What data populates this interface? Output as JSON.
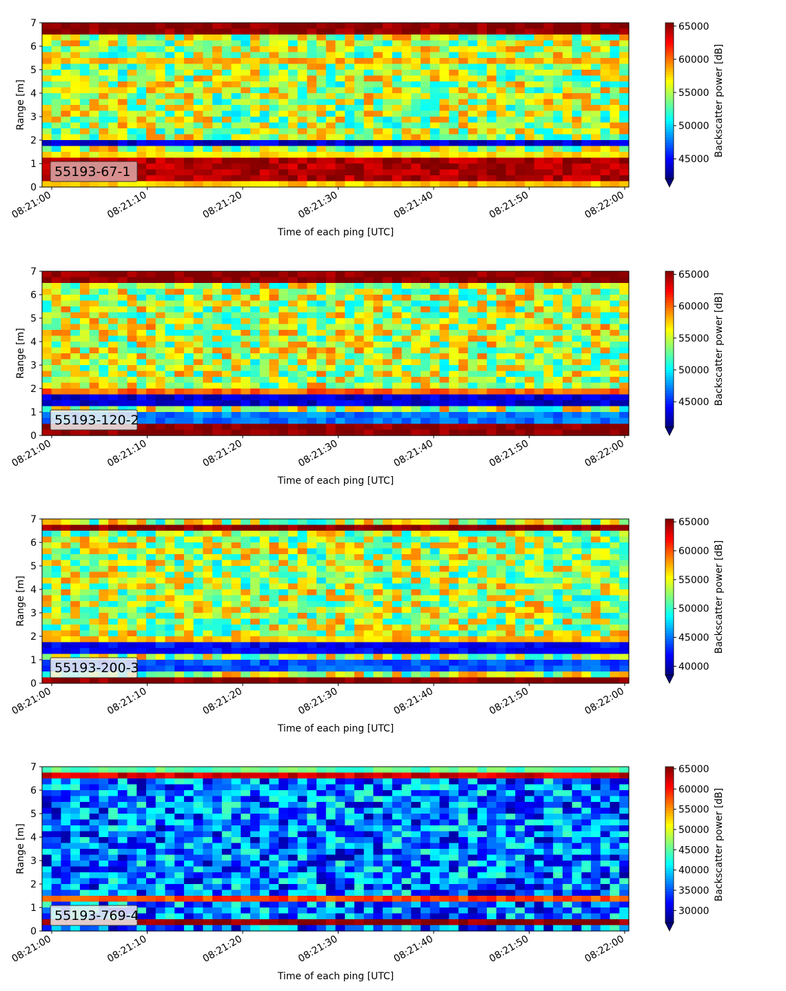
{
  "chart_data": [
    {
      "type": "heatmap",
      "label": "55193-67-1",
      "ylabel": "Range [m]",
      "xlabel": "Time of each ping [UTC]",
      "ylim": [
        0,
        7
      ],
      "yticks": [
        0,
        1,
        2,
        3,
        4,
        5,
        6,
        7
      ],
      "xticks": [
        "08:21:00",
        "08:21:10",
        "08:21:20",
        "08:21:30",
        "08:21:40",
        "08:21:50",
        "08:22:00"
      ],
      "colorbar": {
        "label": "Backscatter power [dB]",
        "min": 42000,
        "max": 65500,
        "ticks": [
          45000,
          50000,
          55000,
          60000,
          65000
        ],
        "colormap": "jet",
        "extend": "min"
      },
      "label_box_color": "#e0a8a8",
      "bands": [
        {
          "range": [
            6.45,
            7.0
          ],
          "value": 65500
        },
        {
          "range": [
            5.2,
            5.6
          ],
          "value": 58500
        },
        {
          "range": [
            1.65,
            1.95
          ],
          "value": 44000
        },
        {
          "range": [
            1.25,
            1.6
          ],
          "value": 57000
        },
        {
          "range": [
            0.2,
            1.15
          ],
          "value": 64500
        },
        {
          "range": [
            0.0,
            0.2
          ],
          "value": 58000
        }
      ]
    },
    {
      "type": "heatmap",
      "label": "55193-120-2",
      "ylabel": "Range [m]",
      "xlabel": "Time of each ping [UTC]",
      "ylim": [
        0,
        7
      ],
      "yticks": [
        0,
        1,
        2,
        3,
        4,
        5,
        6,
        7
      ],
      "xticks": [
        "08:21:00",
        "08:21:10",
        "08:21:20",
        "08:21:30",
        "08:21:40",
        "08:21:50",
        "08:22:00"
      ],
      "colorbar": {
        "label": "Backscatter power [dB]",
        "min": 41000,
        "max": 65500,
        "ticks": [
          45000,
          50000,
          55000,
          60000,
          65000
        ],
        "colormap": "jet",
        "extend": "min"
      },
      "label_box_color": "#f0f0f0",
      "bands": [
        {
          "range": [
            6.5,
            7.0
          ],
          "value": 65500
        },
        {
          "range": [
            1.75,
            2.05
          ],
          "value": 60000
        },
        {
          "range": [
            1.2,
            1.65
          ],
          "value": 43000
        },
        {
          "range": [
            0.55,
            1.1
          ],
          "value": 47000
        },
        {
          "range": [
            0.1,
            0.5
          ],
          "value": 65500
        }
      ]
    },
    {
      "type": "heatmap",
      "label": "55193-200-3",
      "ylabel": "Range [m]",
      "xlabel": "Time of each ping [UTC]",
      "ylim": [
        0,
        7
      ],
      "yticks": [
        0,
        1,
        2,
        3,
        4,
        5,
        6,
        7
      ],
      "xticks": [
        "08:21:00",
        "08:21:10",
        "08:21:20",
        "08:21:30",
        "08:21:40",
        "08:21:50",
        "08:22:00"
      ],
      "colorbar": {
        "label": "Backscatter power [dB]",
        "min": 38500,
        "max": 65500,
        "ticks": [
          40000,
          45000,
          50000,
          55000,
          60000,
          65000
        ],
        "colormap": "jet",
        "extend": "min"
      },
      "label_box_color": "#f0f0f0",
      "bands": [
        {
          "range": [
            6.5,
            6.8
          ],
          "value": 65500
        },
        {
          "range": [
            1.75,
            2.05
          ],
          "value": 57000
        },
        {
          "range": [
            1.2,
            1.65
          ],
          "value": 42000
        },
        {
          "range": [
            0.45,
            1.1
          ],
          "value": 44000
        },
        {
          "range": [
            0.1,
            0.35
          ],
          "value": 65500
        }
      ]
    },
    {
      "type": "heatmap",
      "label": "55193-769-4",
      "ylabel": "Range [m]",
      "xlabel": "Time of each ping [UTC]",
      "ylim": [
        0,
        7
      ],
      "yticks": [
        0,
        1,
        2,
        3,
        4,
        5,
        6,
        7
      ],
      "xticks": [
        "08:21:00",
        "08:21:10",
        "08:21:20",
        "08:21:30",
        "08:21:40",
        "08:21:50",
        "08:22:00"
      ],
      "colorbar": {
        "label": "Backscatter power [dB]",
        "min": 27000,
        "max": 65500,
        "ticks": [
          30000,
          35000,
          40000,
          45000,
          50000,
          55000,
          60000,
          65000
        ],
        "colormap": "jet",
        "extend": "min"
      },
      "label_box_color": "#f0f0f0",
      "bands": [
        {
          "range": [
            6.4,
            6.65
          ],
          "value": 62000
        },
        {
          "range": [
            6.65,
            7.0
          ],
          "value": 45000
        },
        {
          "range": [
            1.3,
            1.45
          ],
          "value": 58000
        },
        {
          "range": [
            0.2,
            0.4
          ],
          "value": 65500
        }
      ]
    }
  ]
}
